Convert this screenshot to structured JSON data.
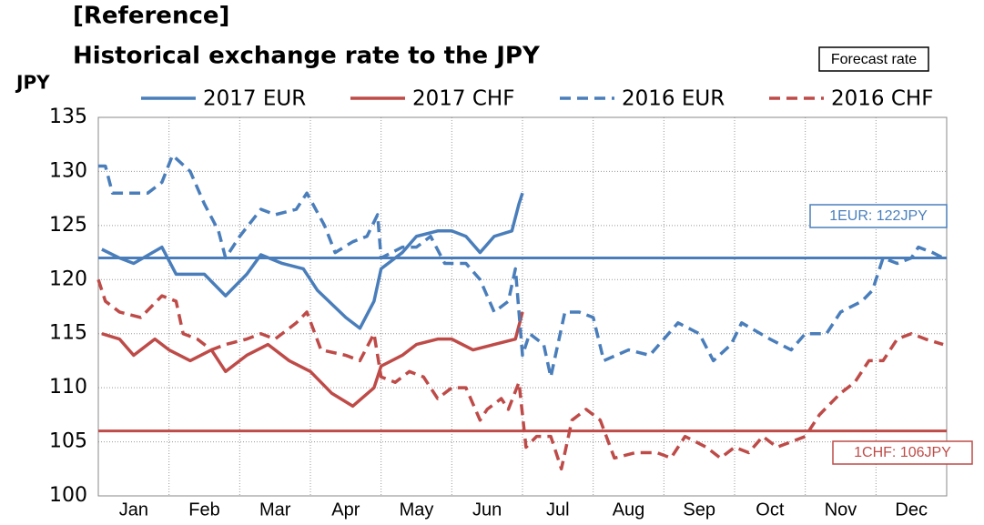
{
  "chart_data": {
    "type": "line",
    "title": "[Reference]",
    "subtitle": "Historical exchange rate to the JPY",
    "y_label": "JPY",
    "annotation": "Forecast rate",
    "grid": true,
    "xlim": [
      0,
      12
    ],
    "xticks": [
      {
        "value": 0.5,
        "label": "Jan"
      },
      {
        "value": 1.5,
        "label": "Feb"
      },
      {
        "value": 2.5,
        "label": "Mar"
      },
      {
        "value": 3.5,
        "label": "Apr"
      },
      {
        "value": 4.5,
        "label": "May"
      },
      {
        "value": 5.5,
        "label": "Jun"
      },
      {
        "value": 6.5,
        "label": "Jul"
      },
      {
        "value": 7.5,
        "label": "Aug"
      },
      {
        "value": 8.5,
        "label": "Sep"
      },
      {
        "value": 9.5,
        "label": "Oct"
      },
      {
        "value": 10.5,
        "label": "Nov"
      },
      {
        "value": 11.5,
        "label": "Dec"
      }
    ],
    "ylim": [
      100,
      135
    ],
    "yticks": [
      100,
      105,
      110,
      115,
      120,
      125,
      130,
      135
    ],
    "reference_lines": [
      {
        "value": 122,
        "label": "1EUR: 122JPY",
        "color": "#4a7ebb"
      },
      {
        "value": 106,
        "label": "1CHF: 106JPY",
        "color": "#be4b48"
      }
    ],
    "series": [
      {
        "name": "2017 EUR",
        "color": "#4a7ebb",
        "dashed": false,
        "x": [
          0.05,
          0.3,
          0.5,
          0.9,
          1.1,
          1.5,
          1.8,
          2.1,
          2.3,
          2.6,
          2.9,
          3.1,
          3.5,
          3.7,
          3.9,
          4.0,
          4.3,
          4.5,
          4.8,
          5.0,
          5.2,
          5.4,
          5.6,
          5.85,
          5.95,
          6.0
        ],
        "values": [
          122.8,
          122,
          121.5,
          123,
          120.5,
          120.5,
          118.5,
          120.5,
          122.3,
          121.5,
          121,
          119,
          116.5,
          115.5,
          118,
          121,
          122.5,
          124,
          124.5,
          124.5,
          124,
          122.5,
          124,
          124.5,
          127,
          128
        ]
      },
      {
        "name": "2017 CHF",
        "color": "#be4b48",
        "dashed": false,
        "x": [
          0.05,
          0.3,
          0.5,
          0.8,
          1.0,
          1.3,
          1.6,
          1.8,
          2.1,
          2.4,
          2.7,
          3.0,
          3.3,
          3.6,
          3.9,
          4.0,
          4.3,
          4.5,
          4.8,
          5.0,
          5.3,
          5.6,
          5.9,
          6.0
        ],
        "values": [
          115,
          114.5,
          113,
          114.5,
          113.5,
          112.5,
          113.5,
          111.5,
          113,
          114,
          112.5,
          111.5,
          109.5,
          108.3,
          110,
          112,
          113,
          114,
          114.5,
          114.5,
          113.5,
          114,
          114.5,
          117
        ]
      },
      {
        "name": "2016 EUR",
        "color": "#4a7ebb",
        "dashed": true,
        "x": [
          0.0,
          0.1,
          0.2,
          0.5,
          0.7,
          0.9,
          1.05,
          1.3,
          1.5,
          1.7,
          1.8,
          2.0,
          2.3,
          2.5,
          2.8,
          2.95,
          3.2,
          3.35,
          3.6,
          3.8,
          3.95,
          4.0,
          4.3,
          4.5,
          4.7,
          4.9,
          5.2,
          5.4,
          5.6,
          5.8,
          5.9,
          6.0,
          6.1,
          6.3,
          6.4,
          6.6,
          6.8,
          7.0,
          7.15,
          7.5,
          7.8,
          8.0,
          8.2,
          8.5,
          8.7,
          8.95,
          9.1,
          9.5,
          9.8,
          10.0,
          10.3,
          10.5,
          10.8,
          10.95,
          11.1,
          11.3,
          11.5,
          11.6,
          11.8,
          11.95
        ],
        "values": [
          130.5,
          130.5,
          128,
          128,
          128,
          129,
          131.5,
          130,
          127,
          124.5,
          122,
          124,
          126.5,
          126,
          126.5,
          128,
          125,
          122.5,
          123.5,
          124,
          126,
          122,
          123,
          123,
          124,
          121.5,
          121.5,
          120,
          117,
          118,
          121,
          113,
          115,
          114,
          111,
          117,
          117,
          116.5,
          112.5,
          113.5,
          113,
          114.5,
          116,
          115,
          112.5,
          114,
          116,
          114.5,
          113.5,
          115,
          115,
          117,
          118,
          119,
          122,
          121.5,
          122,
          123,
          122.5,
          122
        ]
      },
      {
        "name": "2016 CHF",
        "color": "#be4b48",
        "dashed": true,
        "x": [
          0.0,
          0.1,
          0.3,
          0.6,
          0.9,
          1.1,
          1.2,
          1.4,
          1.6,
          1.8,
          2.1,
          2.3,
          2.5,
          2.8,
          2.95,
          3.15,
          3.5,
          3.7,
          3.9,
          4.0,
          4.2,
          4.4,
          4.6,
          4.8,
          5.0,
          5.2,
          5.4,
          5.5,
          5.7,
          5.8,
          5.95,
          6.05,
          6.2,
          6.4,
          6.55,
          6.7,
          6.9,
          7.1,
          7.3,
          7.6,
          7.9,
          8.1,
          8.3,
          8.6,
          8.8,
          9.0,
          9.2,
          9.4,
          9.6,
          9.8,
          10.0,
          10.2,
          10.5,
          10.7,
          10.9,
          11.1,
          11.3,
          11.5,
          11.7,
          11.95
        ],
        "values": [
          120,
          118,
          117,
          116.5,
          118.5,
          118,
          115,
          114.5,
          113.5,
          114,
          114.5,
          115,
          114.5,
          116,
          117,
          113.5,
          113,
          112.5,
          115,
          111,
          110.5,
          111.5,
          111,
          109,
          110,
          110,
          107,
          108,
          109,
          108,
          110.5,
          104.5,
          105.5,
          105.5,
          102.5,
          107,
          108,
          107,
          103.5,
          104,
          104,
          103.5,
          105.5,
          104.5,
          103.5,
          104.5,
          104,
          105.5,
          104.5,
          105,
          105.5,
          107.5,
          109.5,
          110.5,
          112.5,
          112.5,
          114.5,
          115,
          114.5,
          114
        ]
      }
    ]
  }
}
